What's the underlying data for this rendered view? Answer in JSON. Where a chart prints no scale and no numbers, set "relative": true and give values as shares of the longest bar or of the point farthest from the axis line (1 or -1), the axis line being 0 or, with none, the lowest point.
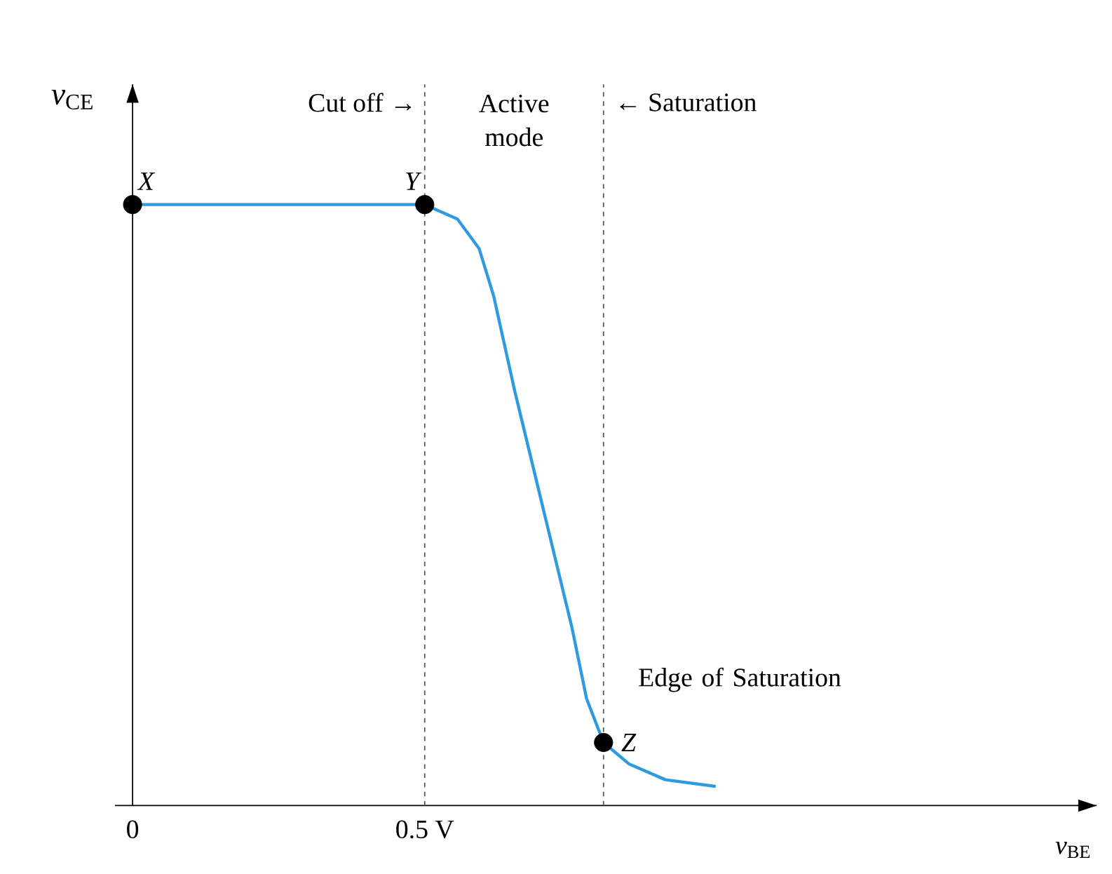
{
  "chart_data": {
    "type": "line",
    "relative": true,
    "xlabel": "*v*$_{BE}$",
    "ylabel": "*v*$_{CE}$",
    "xlim": [
      -0.03,
      1.65
    ],
    "xticks": [
      0,
      {
        "value": 0.5,
        "label": "0.5 V"
      }
    ],
    "series": [
      {
        "color": "#2e9be0",
        "marker": "none",
        "x": [
          0,
          0.5,
          0.556,
          0.593,
          0.618,
          0.654,
          0.703,
          0.752,
          0.777,
          0.806,
          0.85,
          0.912,
          0.998
        ],
        "values": [
          1,
          1,
          0.976,
          0.927,
          0.848,
          0.69,
          0.493,
          0.296,
          0.178,
          0.105,
          0.069,
          0.043,
          0.032
        ]
      },
      {
        "type": "scatter",
        "color": "#000000",
        "marker": "circle",
        "x": [
          0,
          0.5,
          0.806
        ],
        "values": [
          1,
          1,
          0.105
        ]
      }
    ],
    "ref_lines": [
      {
        "axis": "x",
        "value": 0.5,
        "line_style": "dashed",
        "color": "#555555"
      },
      {
        "axis": "x",
        "value": 0.806,
        "line_style": "dashed",
        "color": "#555555"
      }
    ],
    "annotations": [
      "Cut off →",
      "Active mode",
      "← Saturation",
      "Edge of Saturation",
      {
        "text": "X",
        "x": 0,
        "y": 1
      },
      {
        "text": "Y",
        "x": 0.5,
        "y": 1
      },
      {
        "text": "Z",
        "x": 0.806,
        "y": 0.105
      }
    ]
  }
}
